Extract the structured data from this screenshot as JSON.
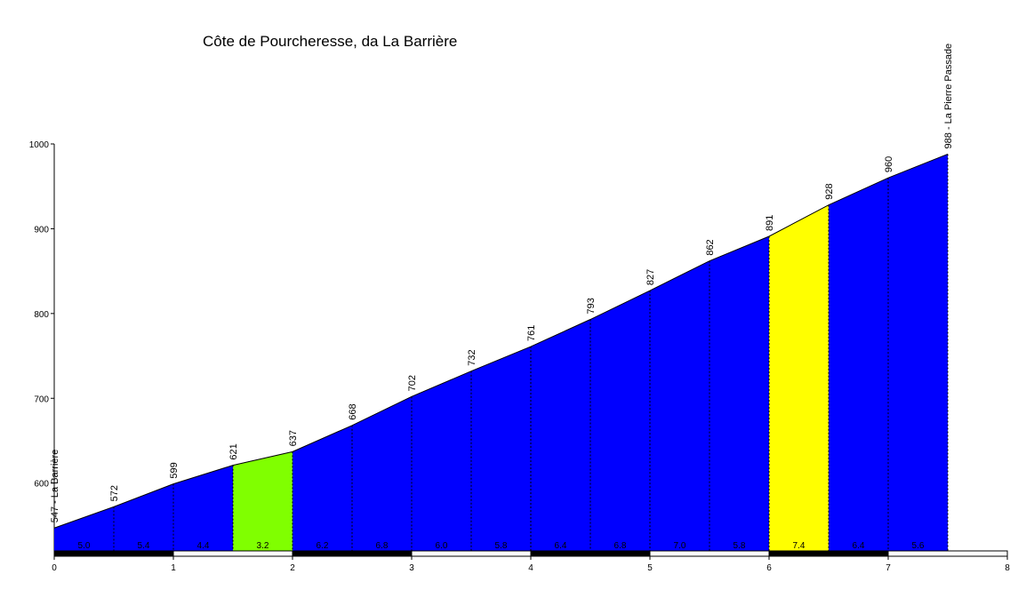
{
  "chart_data": {
    "type": "profile",
    "title": "Côte de Pourcheresse, da La Barrière",
    "x": [
      0,
      0.5,
      1,
      1.5,
      2,
      2.5,
      3,
      3.5,
      4,
      4.5,
      5,
      5.5,
      6,
      6.5,
      7,
      7.5
    ],
    "values": [
      547,
      572,
      599,
      621,
      637,
      668,
      702,
      732,
      761,
      793,
      827,
      862,
      891,
      928,
      960,
      988
    ],
    "value_labels": [
      "547 - La Barrière",
      "572",
      "599",
      "621",
      "637",
      "668",
      "702",
      "732",
      "761",
      "793",
      "827",
      "862",
      "891",
      "928",
      "960",
      "988 - La Pierre Passade"
    ],
    "gradients": [
      5,
      5.4,
      4.4,
      3.2,
      6.2,
      6.8,
      6,
      5.8,
      6.4,
      6.8,
      7,
      5.8,
      7.4,
      6.4,
      5.6
    ],
    "gradient_labels": [
      "5.0",
      "5.4",
      "4.4",
      "3.2",
      "6.2",
      "6.8",
      "6.0",
      "5.8",
      "6.4",
      "6.8",
      "7.0",
      "5.8",
      "7.4",
      "6.4",
      "5.6"
    ],
    "segment_colors": [
      "#0000ff",
      "#0000ff",
      "#0000ff",
      "#80ff00",
      "#0000ff",
      "#0000ff",
      "#0000ff",
      "#0000ff",
      "#0000ff",
      "#0000ff",
      "#0000ff",
      "#0000ff",
      "#ffff00",
      "#0000ff",
      "#0000ff"
    ],
    "xlim": [
      0,
      8
    ],
    "xticks": [
      0,
      1,
      2,
      3,
      4,
      5,
      6,
      7,
      8
    ],
    "ylim": [
      520,
      1000
    ],
    "yticks": [
      600,
      700,
      800,
      900,
      1000
    ]
  }
}
